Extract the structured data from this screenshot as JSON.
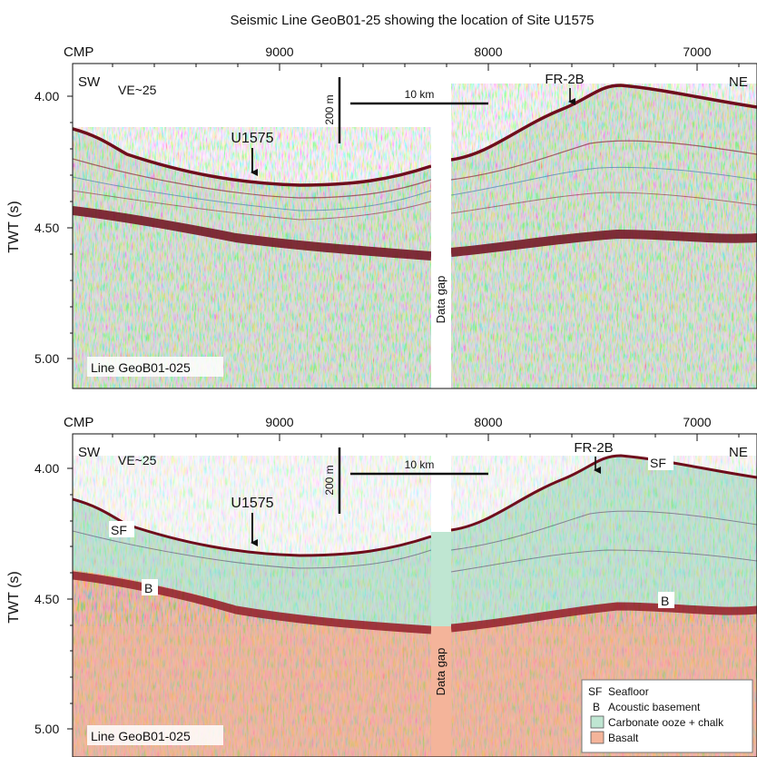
{
  "title": "Seismic Line GeoB01-25 showing the location of Site U1575",
  "axis": {
    "x_label": "CMP",
    "x_ticks": [
      "9000",
      "8000",
      "7000"
    ],
    "y_label": "TWT (s)",
    "y_ticks": [
      "4.00",
      "4.50",
      "5.00"
    ]
  },
  "direction": {
    "left": "SW",
    "right": "NE"
  },
  "vertical_exaggeration": "VE~25",
  "scale": {
    "vertical": "200 m",
    "horizontal": "10 km"
  },
  "sites": {
    "u1575": "U1575",
    "fr2b": "FR-2B"
  },
  "data_gap": "Data gap",
  "line_name": "Line GeoB01-025",
  "interp_labels": {
    "sf": "SF",
    "b": "B"
  },
  "legend": [
    {
      "key": "SF",
      "label": "Seafloor",
      "color": ""
    },
    {
      "key": "B",
      "label": "Acoustic basement",
      "color": ""
    },
    {
      "key": "",
      "label": "Carbonate ooze + chalk",
      "color": "#bfe6d2"
    },
    {
      "key": "",
      "label": "Basalt",
      "color": "#f4b49a"
    }
  ],
  "colors": {
    "ooze": "#bfe6d2",
    "basalt": "#f4b49a",
    "seafloor_reflector": "#6e0e1c",
    "basement_reflector": "#8c1522"
  }
}
